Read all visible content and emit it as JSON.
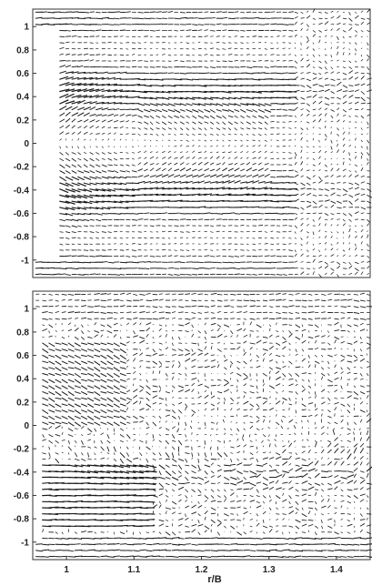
{
  "chart_data": [
    {
      "type": "quiver",
      "panel": "top",
      "xlim": [
        0.95,
        1.45
      ],
      "ylim": [
        -1.15,
        1.15
      ],
      "y_ticks": [
        -1,
        -0.8,
        -0.6,
        -0.4,
        -0.2,
        0,
        0.2,
        0.4,
        0.6,
        0.8,
        1
      ],
      "y_tick_labels": [
        "-1",
        "-0.8",
        "-0.6",
        "-0.4",
        "-0.2",
        "0",
        "0.2",
        "0.4",
        "0.6",
        "0.8",
        "1"
      ],
      "x_ticks": [],
      "xlabel": "",
      "ylabel": "",
      "grid": false,
      "field": "coherent",
      "density_cols": 56,
      "density_rows": 44,
      "seed": 7,
      "blank_region_x_max": 0.985
    },
    {
      "type": "quiver",
      "panel": "bottom",
      "xlim": [
        0.95,
        1.45
      ],
      "ylim": [
        -1.15,
        1.15
      ],
      "y_ticks": [
        -1,
        -0.8,
        -0.6,
        -0.4,
        -0.2,
        0,
        0.2,
        0.4,
        0.6,
        0.8,
        1
      ],
      "y_tick_labels": [
        "-1",
        "-0.8",
        "-0.6",
        "-0.4",
        "-0.2",
        "0",
        "0.2",
        "0.4",
        "0.6",
        "0.8",
        "1"
      ],
      "x_ticks": [
        1,
        1.1,
        1.2,
        1.3,
        1.4
      ],
      "x_tick_labels": [
        "1",
        "1.1",
        "1.2",
        "1.3",
        "1.4"
      ],
      "xlabel": "r/B",
      "ylabel": "",
      "grid": false,
      "field": "turbulent",
      "density_cols": 52,
      "density_rows": 44,
      "seed": 19,
      "blank_region_x_max": 0.96
    }
  ]
}
